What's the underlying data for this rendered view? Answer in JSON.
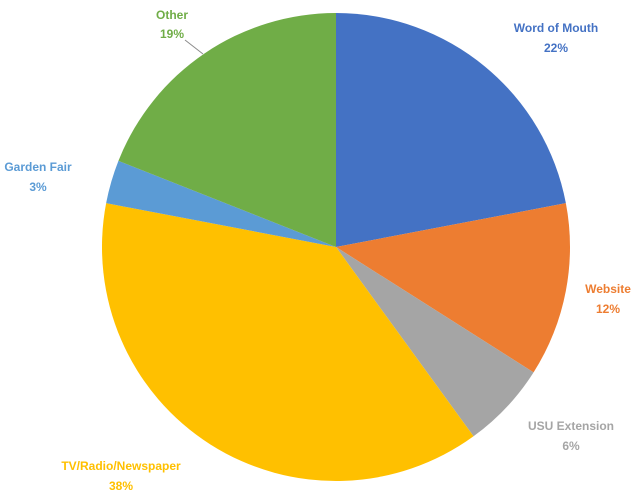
{
  "chart_data": {
    "type": "pie",
    "title": "",
    "legend": "none",
    "slices": [
      {
        "label": "Word of Mouth",
        "value": 22,
        "value_label": "22%",
        "color": "#4472C4"
      },
      {
        "label": "Website",
        "value": 12,
        "value_label": "12%",
        "color": "#ED7D31"
      },
      {
        "label": "USU Extension",
        "value": 6,
        "value_label": "6%",
        "color": "#A5A5A5"
      },
      {
        "label": "TV/Radio/Newspaper",
        "value": 38,
        "value_label": "38%",
        "color": "#FFC000"
      },
      {
        "label": "Garden Fair",
        "value": 3,
        "value_label": "3%",
        "color": "#5B9BD5"
      },
      {
        "label": "Other",
        "value": 19,
        "value_label": "19%",
        "color": "#70AD47"
      }
    ]
  }
}
